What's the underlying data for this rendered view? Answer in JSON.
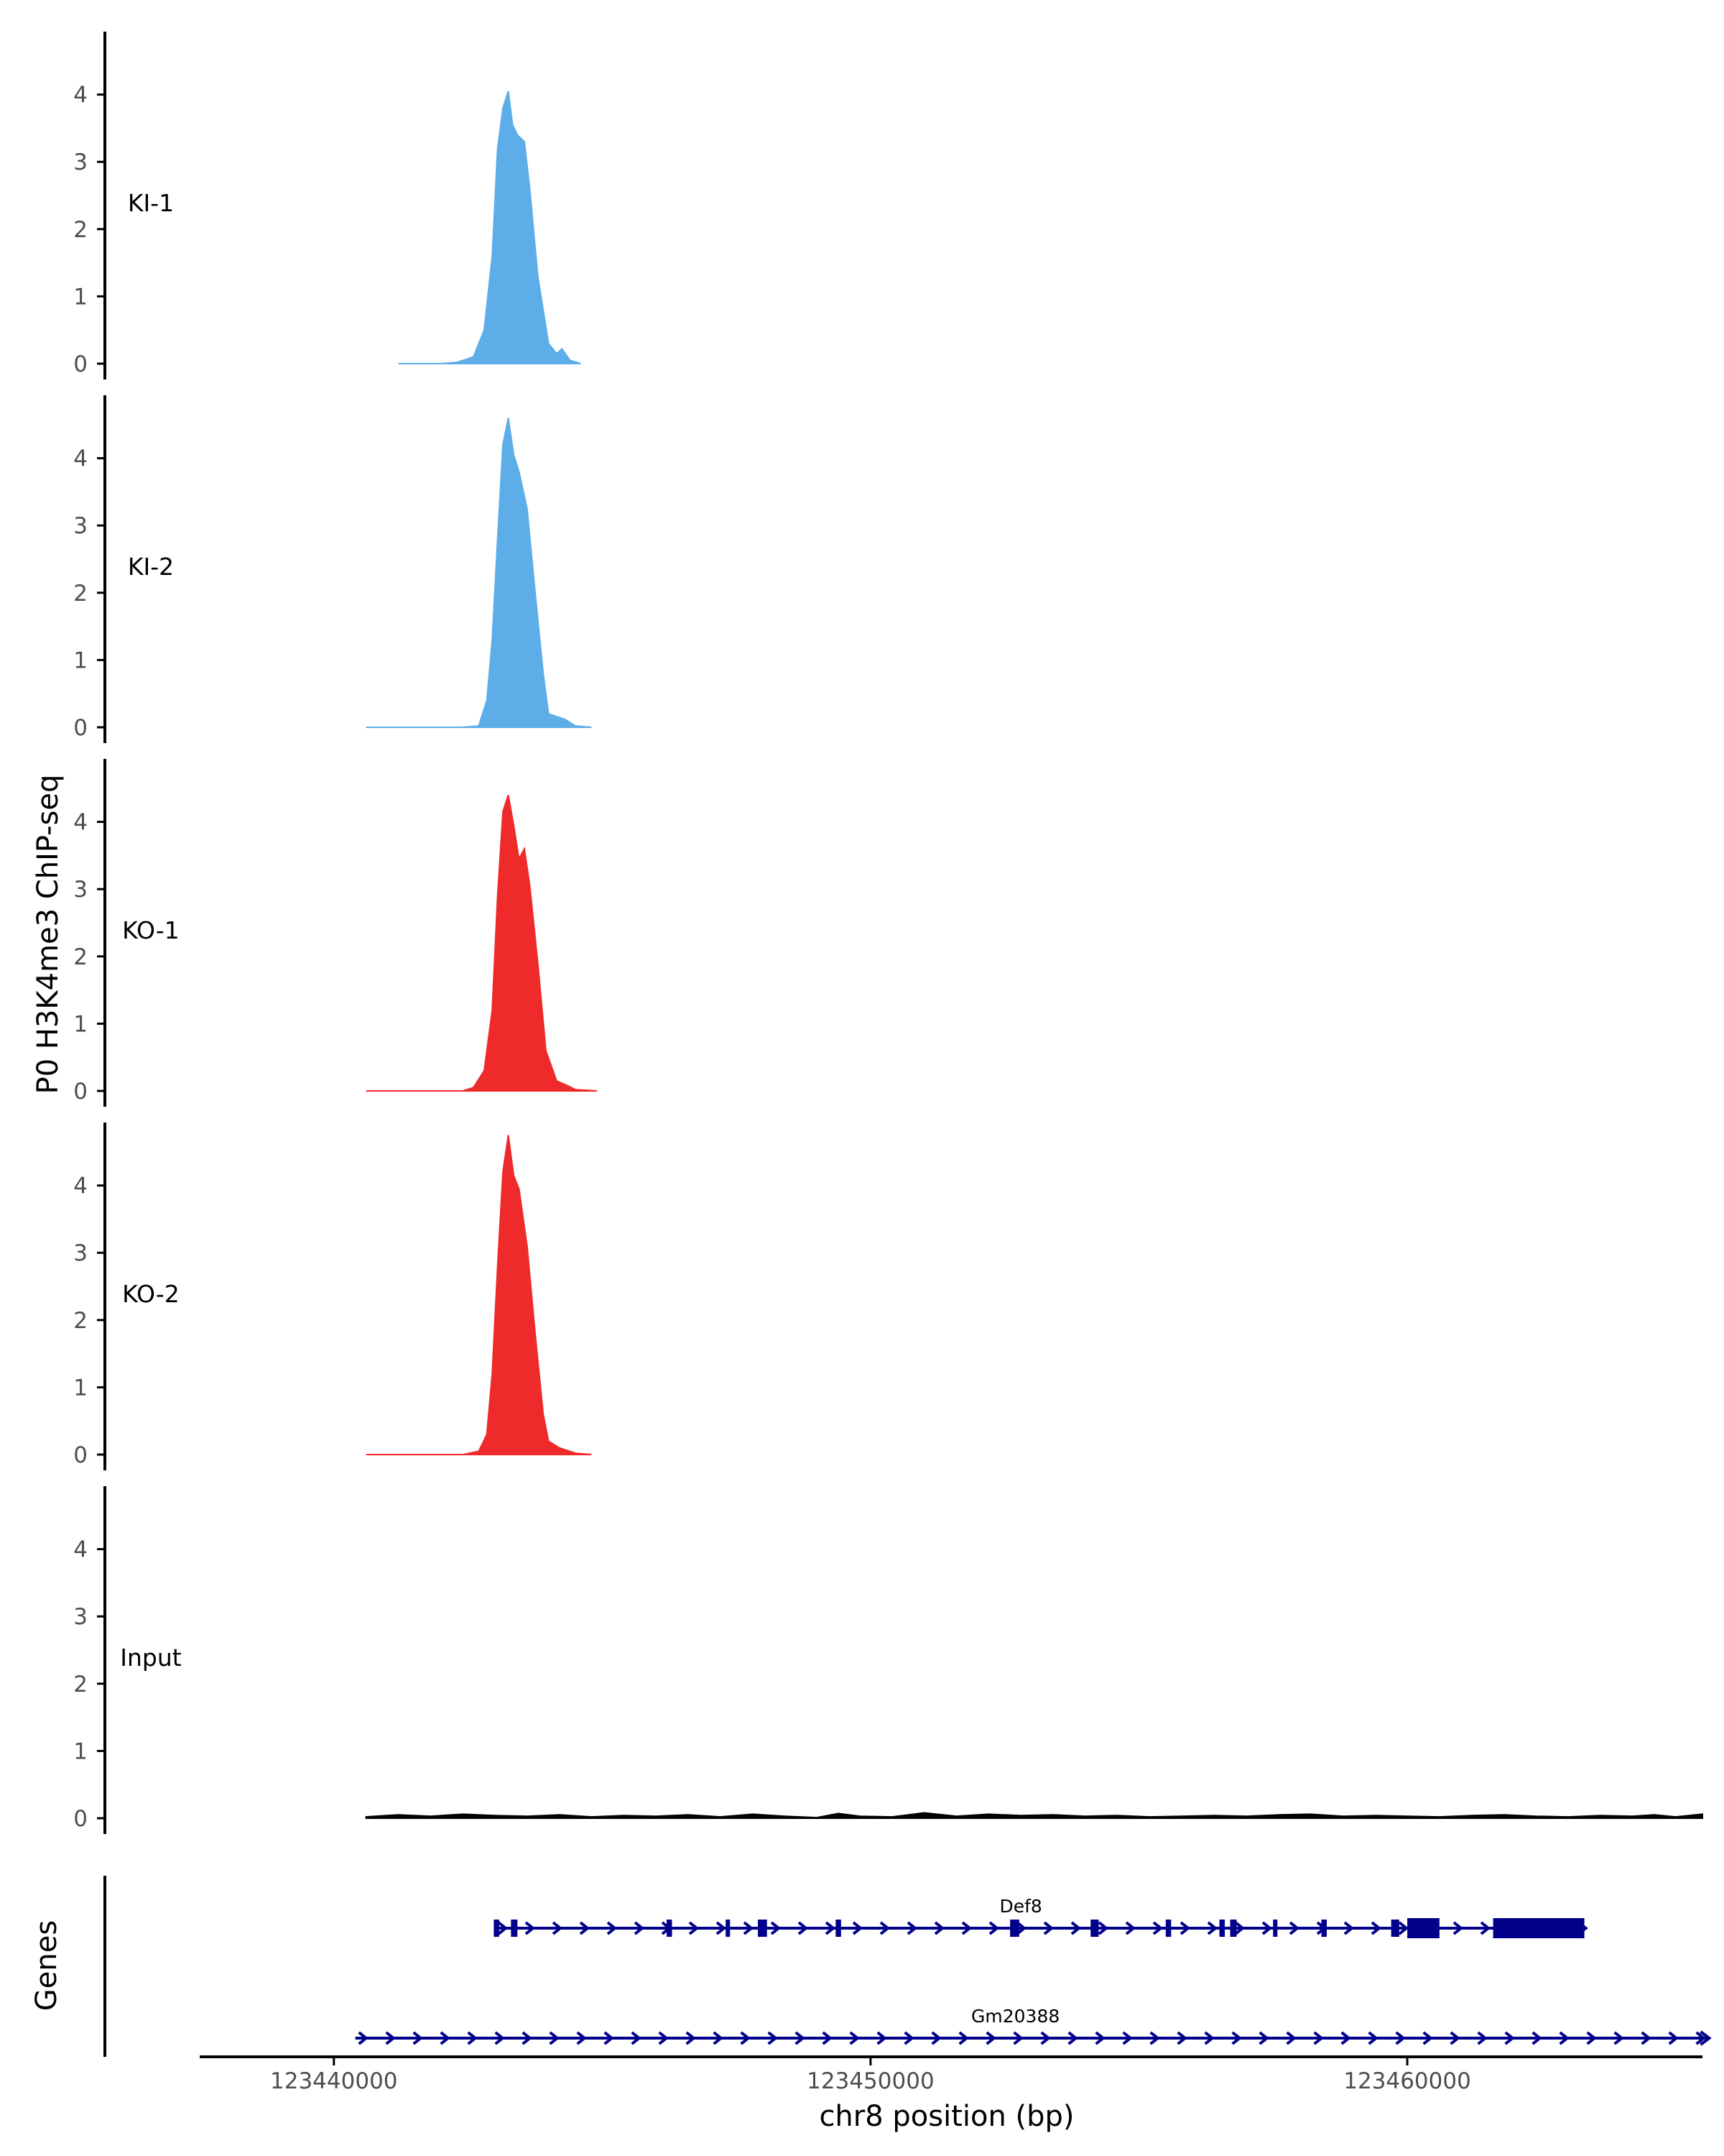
{
  "colors": {
    "ki": "#5dade8",
    "ko": "#ee2a2a",
    "input": "#000000",
    "gene": "#00008b",
    "axis": "#000000",
    "tick_text": "#4d4d4d"
  },
  "chart_data": {
    "type": "area",
    "title": "",
    "ylabel": "P0 H3K4me3 ChIP-seq",
    "xlabel": "chr8 position (bp)",
    "xlim": [
      123437500,
      123465500
    ],
    "ylim": [
      0,
      5
    ],
    "yticks": [
      0,
      1,
      2,
      3,
      4
    ],
    "xticks": [
      123440000,
      123450000,
      123460000
    ],
    "xtick_labels": [
      "123440000",
      "123450000",
      "123460000"
    ],
    "tracks": [
      {
        "name": "KI-1",
        "label": "KI-1",
        "color_key": "ki",
        "x": [
          123441200,
          123442000,
          123442300,
          123442600,
          123442800,
          123442950,
          123443050,
          123443150,
          123443250,
          123443330,
          123443420,
          123443550,
          123443650,
          123443800,
          123444000,
          123444150,
          123444250,
          123444400,
          123444600
        ],
        "y": [
          0,
          0,
          0.02,
          0.1,
          0.5,
          1.6,
          3.2,
          3.8,
          4.05,
          3.55,
          3.4,
          3.3,
          2.6,
          1.3,
          0.3,
          0.15,
          0.22,
          0.05,
          0
        ]
      },
      {
        "name": "KI-2",
        "label": "KI-2",
        "color_key": "ki",
        "x": [
          123440600,
          123442400,
          123442700,
          123442850,
          123442950,
          123443050,
          123443150,
          123443250,
          123443350,
          123443450,
          123443600,
          123443750,
          123443900,
          123444000,
          123444300,
          123444500,
          123444800
        ],
        "y": [
          0,
          0,
          0.02,
          0.4,
          1.3,
          2.8,
          4.2,
          4.6,
          4.05,
          3.8,
          3.25,
          2.0,
          0.8,
          0.2,
          0.12,
          0.02,
          0
        ]
      },
      {
        "name": "KO-1",
        "label": "KO-1",
        "color_key": "ko",
        "x": [
          123440600,
          123442400,
          123442600,
          123442800,
          123442950,
          123443050,
          123443150,
          123443250,
          123443350,
          123443450,
          123443550,
          123443650,
          123443800,
          123443950,
          123444150,
          123444350,
          123444500,
          123444900
        ],
        "y": [
          0,
          0,
          0.05,
          0.3,
          1.2,
          2.9,
          4.15,
          4.4,
          3.95,
          3.45,
          3.6,
          3.05,
          1.9,
          0.6,
          0.15,
          0.08,
          0.02,
          0
        ]
      },
      {
        "name": "KO-2",
        "label": "KO-2",
        "color_key": "ko",
        "x": [
          123440600,
          123442400,
          123442700,
          123442850,
          123442950,
          123443050,
          123443150,
          123443250,
          123443350,
          123443450,
          123443600,
          123443750,
          123443900,
          123444000,
          123444200,
          123444500,
          123444800
        ],
        "y": [
          0,
          0,
          0.05,
          0.3,
          1.2,
          2.8,
          4.2,
          4.75,
          4.15,
          3.95,
          3.1,
          1.8,
          0.6,
          0.2,
          0.1,
          0.02,
          0
        ]
      },
      {
        "name": "Input",
        "label": "Input",
        "color_key": "input",
        "x": [
          123440600,
          123441200,
          123441800,
          123442400,
          123443000,
          123443600,
          123444200,
          123444800,
          123445400,
          123446000,
          123446600,
          123447200,
          123447800,
          123448400,
          123449000,
          123449400,
          123449800,
          123450400,
          123451000,
          123451600,
          123452200,
          123452800,
          123453400,
          123454000,
          123454600,
          123455200,
          123455800,
          123456400,
          123457000,
          123457600,
          123458200,
          123458800,
          123459400,
          123460000,
          123460600,
          123461200,
          123461800,
          123462400,
          123463000,
          123463600,
          123464200,
          123464600,
          123465000,
          123465500
        ],
        "y": [
          0.02,
          0.05,
          0.03,
          0.06,
          0.04,
          0.03,
          0.05,
          0.02,
          0.04,
          0.03,
          0.05,
          0.02,
          0.06,
          0.03,
          0.01,
          0.07,
          0.03,
          0.02,
          0.08,
          0.03,
          0.06,
          0.04,
          0.05,
          0.03,
          0.04,
          0.02,
          0.03,
          0.04,
          0.03,
          0.05,
          0.06,
          0.03,
          0.04,
          0.03,
          0.02,
          0.04,
          0.05,
          0.03,
          0.02,
          0.04,
          0.03,
          0.05,
          0.02,
          0.06
        ]
      }
    ],
    "genes": {
      "label": "Genes",
      "items": [
        {
          "name": "Def8",
          "start": 123443000,
          "end": 123463300,
          "strand": "+",
          "exons": [
            [
              123443000,
              123443050
            ],
            [
              123443300,
              123443420
            ],
            [
              123446200,
              123446280
            ],
            [
              123447300,
              123447360
            ],
            [
              123447900,
              123448050
            ],
            [
              123449350,
              123449450
            ],
            [
              123452600,
              123452750
            ],
            [
              123454100,
              123454250
            ],
            [
              123455500,
              123455600
            ],
            [
              123456500,
              123456600
            ],
            [
              123456700,
              123456800
            ],
            [
              123457500,
              123457580
            ],
            [
              123458400,
              123458480
            ],
            [
              123459700,
              123459850
            ],
            [
              123460000,
              123460600
            ],
            [
              123461600,
              123463300
            ]
          ],
          "introns_marks": [
            123443000,
            123446280,
            123447360,
            123448050,
            123452750,
            123456800,
            123458480
          ]
        },
        {
          "name": "Gm20388",
          "start": 123440400,
          "end": 123465600,
          "strand": "+",
          "exons": []
        }
      ]
    }
  }
}
